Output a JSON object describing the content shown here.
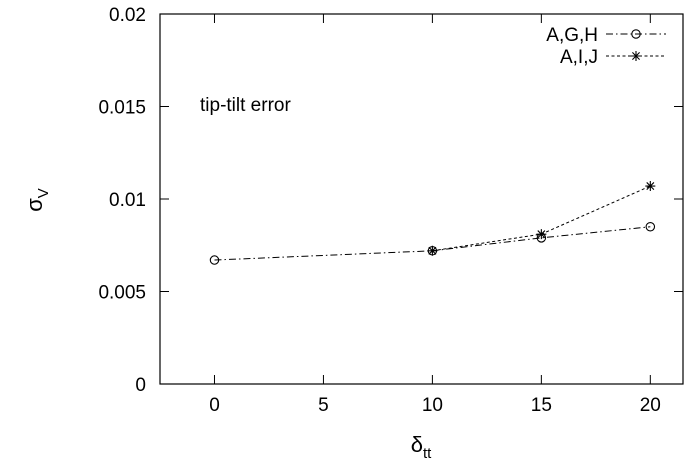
{
  "chart_data": {
    "type": "line",
    "title": "",
    "xlabel": {
      "symbol": "δ",
      "subscript": "tt"
    },
    "ylabel": {
      "symbol": "σ",
      "subscript": "V"
    },
    "xlim": [
      -2.5,
      21.5
    ],
    "ylim": [
      0,
      0.02
    ],
    "x_ticks": [
      0,
      5,
      10,
      15,
      20
    ],
    "x_tick_labels": [
      "0",
      "5",
      "10",
      "15",
      "20"
    ],
    "y_ticks": [
      0,
      0.005,
      0.01,
      0.015,
      0.02
    ],
    "y_tick_labels": [
      "0",
      "0.005",
      "0.01",
      "0.015",
      "0.02"
    ],
    "grid": false,
    "legend_position": "top-right",
    "annotation": "tip-tilt error",
    "series": [
      {
        "name": "A,G,H",
        "marker": "circle",
        "dash": "dash-dot",
        "color": "#000000",
        "x": [
          0,
          10,
          15,
          20
        ],
        "y": [
          0.0067,
          0.0072,
          0.0079,
          0.0085
        ]
      },
      {
        "name": "A,I,J",
        "marker": "asterisk",
        "dash": "dotted",
        "color": "#000000",
        "x": [
          10,
          15,
          20
        ],
        "y": [
          0.0072,
          0.0081,
          0.0107
        ]
      }
    ]
  }
}
